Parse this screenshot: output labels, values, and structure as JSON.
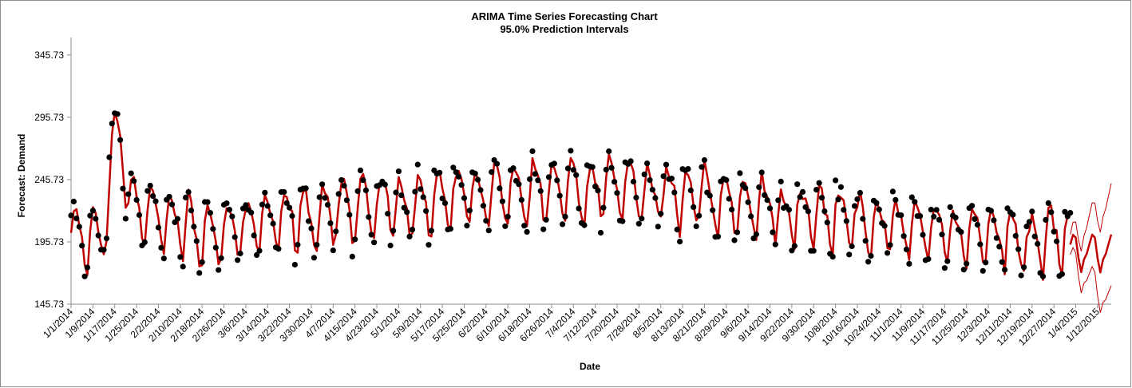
{
  "chart_data": {
    "type": "line",
    "title": "ARIMA Time Series Forecasting Chart",
    "subtitle": "95.0% Prediction Intervals",
    "xlabel": "Date",
    "ylabel": "Forecast: Demand",
    "y_ticks": [
      "145.73",
      "195.73",
      "245.73",
      "295.73",
      "345.73"
    ],
    "ylim": [
      145.73,
      359.73
    ],
    "x_tick_labels": [
      "1/1/2014",
      "1/9/2014",
      "1/17/2014",
      "1/25/2014",
      "2/2/2014",
      "2/10/2014",
      "2/18/2014",
      "2/26/2014",
      "3/6/2014",
      "3/14/2014",
      "3/22/2014",
      "3/30/2014",
      "4/7/2014",
      "4/15/2014",
      "4/23/2014",
      "5/1/2014",
      "5/9/2014",
      "5/17/2014",
      "5/25/2014",
      "6/2/2014",
      "6/10/2014",
      "6/18/2014",
      "6/26/2014",
      "7/4/2014",
      "7/12/2014",
      "7/20/2014",
      "7/28/2014",
      "8/5/2014",
      "8/13/2014",
      "8/21/2014",
      "8/29/2014",
      "9/6/2014",
      "9/14/2014",
      "9/22/2014",
      "9/30/2014",
      "10/8/2014",
      "10/16/2014",
      "10/24/2014",
      "11/1/2014",
      "11/9/2014",
      "11/17/2014",
      "11/25/2014",
      "12/3/2014",
      "12/11/2014",
      "12/19/2014",
      "12/27/2014",
      "1/4/2015",
      "1/12/2015"
    ],
    "x_start": "1/1/2014",
    "x_end": "1/17/2015",
    "history_end": "1/2/2015",
    "grid": false,
    "legend": "none",
    "series": [
      {
        "role": "forecast",
        "color": "#c00000"
      },
      {
        "role": "actual",
        "color": "#000000"
      },
      {
        "role": "upper-95",
        "color": "#c00000"
      },
      {
        "role": "lower-95",
        "color": "#c00000"
      }
    ],
    "y_approx_range": [
      168,
      348
    ]
  }
}
